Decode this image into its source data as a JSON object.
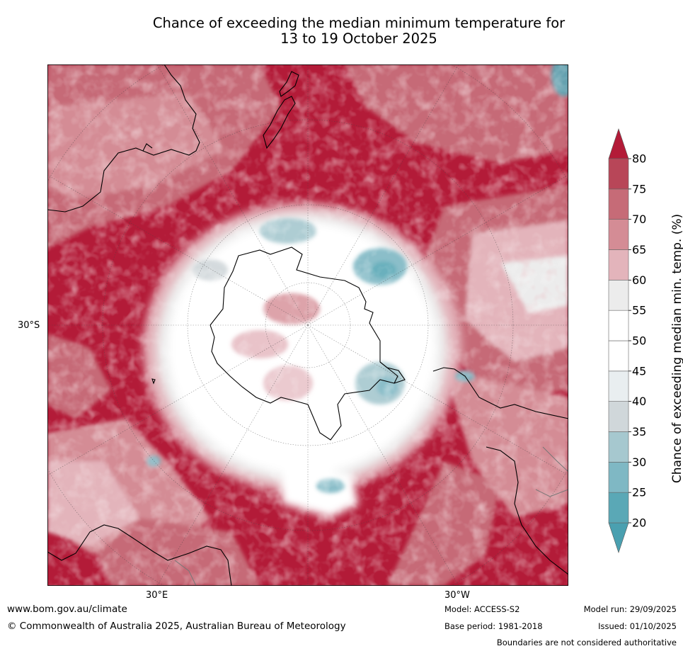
{
  "title": {
    "line1": "Chance of exceeding the median minimum temperature for",
    "line2": "13 to 19 October 2025"
  },
  "axis_labels": {
    "lat_30s": "30°S",
    "lon_30e": "30°E",
    "lon_30w": "30°W"
  },
  "colorbar": {
    "label": "Chance of exceeding median min. temp. (%)",
    "ticks": [
      "20",
      "25",
      "30",
      "35",
      "40",
      "45",
      "50",
      "55",
      "60",
      "65",
      "70",
      "75",
      "80"
    ],
    "colors": [
      "#5aa8b6",
      "#7fb8c4",
      "#a6c8cf",
      "#d0d7da",
      "#e9eef0",
      "#ffffff",
      "#ffffff",
      "#ececec",
      "#e3b4bb",
      "#d48c95",
      "#c66b77",
      "#b84658"
    ],
    "under_color": "#4aa0b0",
    "over_color": "#b31b38"
  },
  "footer": {
    "website": "www.bom.gov.au/climate",
    "copyright": "© Commonwealth of Australia 2025, Australian Bureau of Meteorology",
    "model": "Model: ACCESS-S2",
    "base_period": "Base period: 1981-2018",
    "model_run": "Model run: 29/09/2025",
    "issued": "Issued: 01/10/2025",
    "disclaimer": "Boundaries are not considered authoritative"
  }
}
